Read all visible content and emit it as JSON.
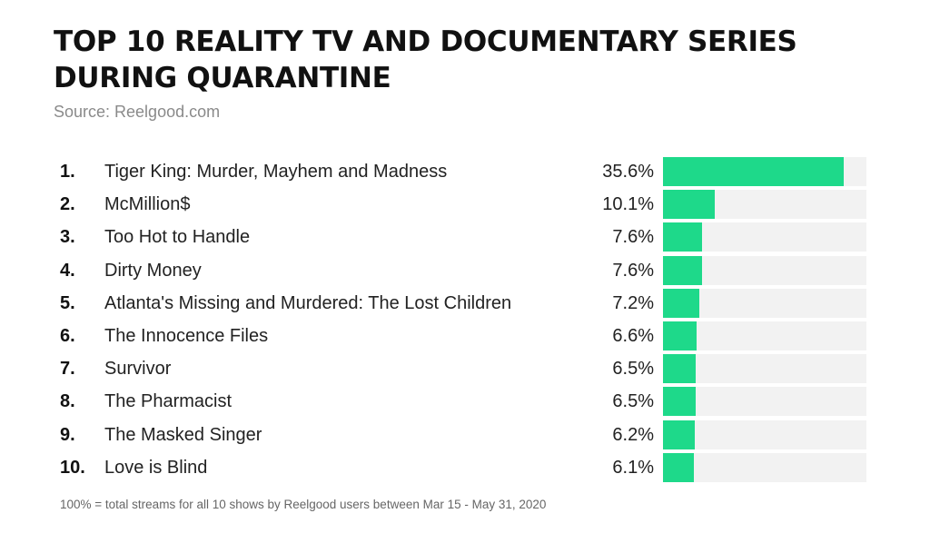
{
  "header": {
    "title_line1": "TOP 10 REALITY TV AND DOCUMENTARY SERIES",
    "title_line2": "DURING QUARANTINE",
    "source": "Source: Reelgood.com"
  },
  "footnote": "100% = total streams for all 10 shows by Reelgood users between Mar 15 - May 31, 2020",
  "colors": {
    "bar": "#1ed98a",
    "track": "#f2f2f2"
  },
  "chart_data": {
    "type": "bar",
    "orientation": "horizontal",
    "title": "TOP 10 REALITY TV AND DOCUMENTARY SERIES DURING QUARANTINE",
    "subtitle": "Source: Reelgood.com",
    "xlim": [
      0,
      40
    ],
    "grid": false,
    "ranks": [
      "1.",
      "2.",
      "3.",
      "4.",
      "5.",
      "6.",
      "7.",
      "8.",
      "9.",
      "10."
    ],
    "categories": [
      "Tiger King: Murder, Mayhem and Madness",
      "McMillion$",
      "Too Hot to Handle",
      "Dirty Money",
      "Atlanta's Missing and Murdered: The Lost Children",
      "The Innocence Files",
      "Survivor",
      "The Pharmacist",
      "The Masked Singer",
      "Love is Blind"
    ],
    "values": [
      35.6,
      10.1,
      7.6,
      7.6,
      7.2,
      6.6,
      6.5,
      6.5,
      6.2,
      6.1
    ],
    "labels": [
      "35.6%",
      "10.1%",
      "7.6%",
      "7.6%",
      "7.2%",
      "6.6%",
      "6.5%",
      "6.5%",
      "6.2%",
      "6.1%"
    ]
  }
}
